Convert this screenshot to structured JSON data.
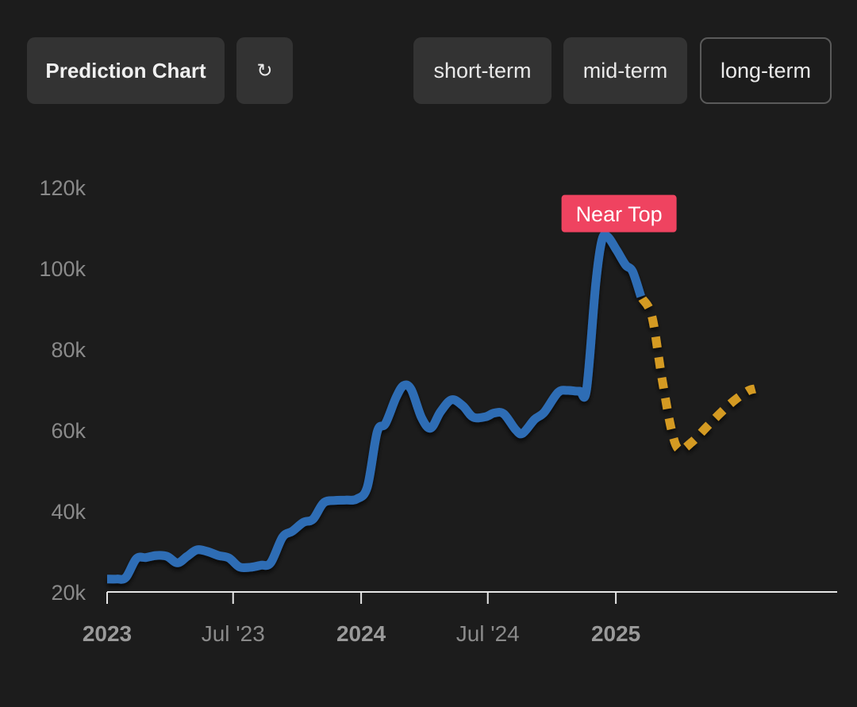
{
  "toolbar": {
    "title_label": "Prediction Chart",
    "refresh_glyph": "↻",
    "ranges": [
      {
        "label": "short-term",
        "selected": false
      },
      {
        "label": "mid-term",
        "selected": false
      },
      {
        "label": "long-term",
        "selected": true
      }
    ]
  },
  "colors": {
    "background": "#1c1c1c",
    "history_line": "#2f6db5",
    "prediction_line": "#d49a22",
    "badge": "#ef4360",
    "axis": "#e6e6e6",
    "tick_text": "#8a8a8a",
    "year_tick_text": "#9a9a9a"
  },
  "icons": {
    "refresh": "refresh-icon"
  },
  "chart_data": {
    "type": "line",
    "ylim": [
      20000,
      120000
    ],
    "y_ticks": [
      {
        "value": 20000,
        "label": "20k"
      },
      {
        "value": 40000,
        "label": "40k"
      },
      {
        "value": 60000,
        "label": "60k"
      },
      {
        "value": 80000,
        "label": "80k"
      },
      {
        "value": 100000,
        "label": "100k"
      },
      {
        "value": 120000,
        "label": "120k"
      }
    ],
    "xlim": [
      "2023-01-01",
      "2025-11-15"
    ],
    "x_ticks": [
      {
        "date": "2023-01-01",
        "label": "2023",
        "bold": true
      },
      {
        "date": "2023-07-01",
        "label": "Jul '23",
        "bold": false
      },
      {
        "date": "2024-01-01",
        "label": "2024",
        "bold": true
      },
      {
        "date": "2024-07-01",
        "label": "Jul '24",
        "bold": false
      },
      {
        "date": "2025-01-01",
        "label": "2025",
        "bold": true
      }
    ],
    "series": [
      {
        "style": "solid",
        "points": [
          [
            "2023-01-01",
            23200
          ],
          [
            "2023-01-15",
            23200
          ],
          [
            "2023-01-28",
            23600
          ],
          [
            "2023-02-12",
            28200
          ],
          [
            "2023-02-26",
            28500
          ],
          [
            "2023-03-12",
            29000
          ],
          [
            "2023-03-28",
            28800
          ],
          [
            "2023-04-12",
            27200
          ],
          [
            "2023-04-26",
            28800
          ],
          [
            "2023-05-10",
            30400
          ],
          [
            "2023-05-25",
            30000
          ],
          [
            "2023-06-10",
            29000
          ],
          [
            "2023-06-25",
            28400
          ],
          [
            "2023-07-10",
            26200
          ],
          [
            "2023-07-26",
            26100
          ],
          [
            "2023-08-10",
            26600
          ],
          [
            "2023-08-24",
            27200
          ],
          [
            "2023-09-10",
            33500
          ],
          [
            "2023-09-24",
            35000
          ],
          [
            "2023-10-10",
            37200
          ],
          [
            "2023-10-24",
            38000
          ],
          [
            "2023-11-08",
            42000
          ],
          [
            "2023-11-24",
            42600
          ],
          [
            "2023-12-10",
            42700
          ],
          [
            "2023-12-26",
            43000
          ],
          [
            "2024-01-10",
            46000
          ],
          [
            "2024-01-24",
            59500
          ],
          [
            "2024-02-05",
            61600
          ],
          [
            "2024-02-20",
            68000
          ],
          [
            "2024-03-02",
            71000
          ],
          [
            "2024-03-13",
            70000
          ],
          [
            "2024-03-28",
            63000
          ],
          [
            "2024-04-10",
            60500
          ],
          [
            "2024-04-24",
            64500
          ],
          [
            "2024-05-10",
            67500
          ],
          [
            "2024-05-26",
            66000
          ],
          [
            "2024-06-10",
            63200
          ],
          [
            "2024-06-28",
            63300
          ],
          [
            "2024-07-10",
            64200
          ],
          [
            "2024-07-24",
            64000
          ],
          [
            "2024-08-10",
            60100
          ],
          [
            "2024-08-20",
            59200
          ],
          [
            "2024-09-06",
            62600
          ],
          [
            "2024-09-20",
            64400
          ],
          [
            "2024-10-10",
            69300
          ],
          [
            "2024-10-24",
            69800
          ],
          [
            "2024-11-10",
            69600
          ],
          [
            "2024-11-20",
            70200
          ],
          [
            "2024-12-03",
            96000
          ],
          [
            "2024-12-12",
            107000
          ],
          [
            "2024-12-20",
            107800
          ],
          [
            "2025-01-02",
            104500
          ],
          [
            "2025-01-15",
            100800
          ],
          [
            "2025-01-25",
            99200
          ],
          [
            "2025-02-06",
            93000
          ]
        ]
      },
      {
        "style": "dashed",
        "points": [
          [
            "2025-02-08",
            92500
          ],
          [
            "2025-02-22",
            88000
          ],
          [
            "2025-03-08",
            73000
          ],
          [
            "2025-03-22",
            60000
          ],
          [
            "2025-04-02",
            55200
          ],
          [
            "2025-04-20",
            57000
          ],
          [
            "2025-05-10",
            60500
          ],
          [
            "2025-05-30",
            64000
          ],
          [
            "2025-06-20",
            67300
          ],
          [
            "2025-07-10",
            69700
          ],
          [
            "2025-07-20",
            70200
          ]
        ]
      }
    ],
    "annotations": [
      {
        "text": "Near Top",
        "date": "2025-01-01",
        "value": 113500
      }
    ]
  }
}
